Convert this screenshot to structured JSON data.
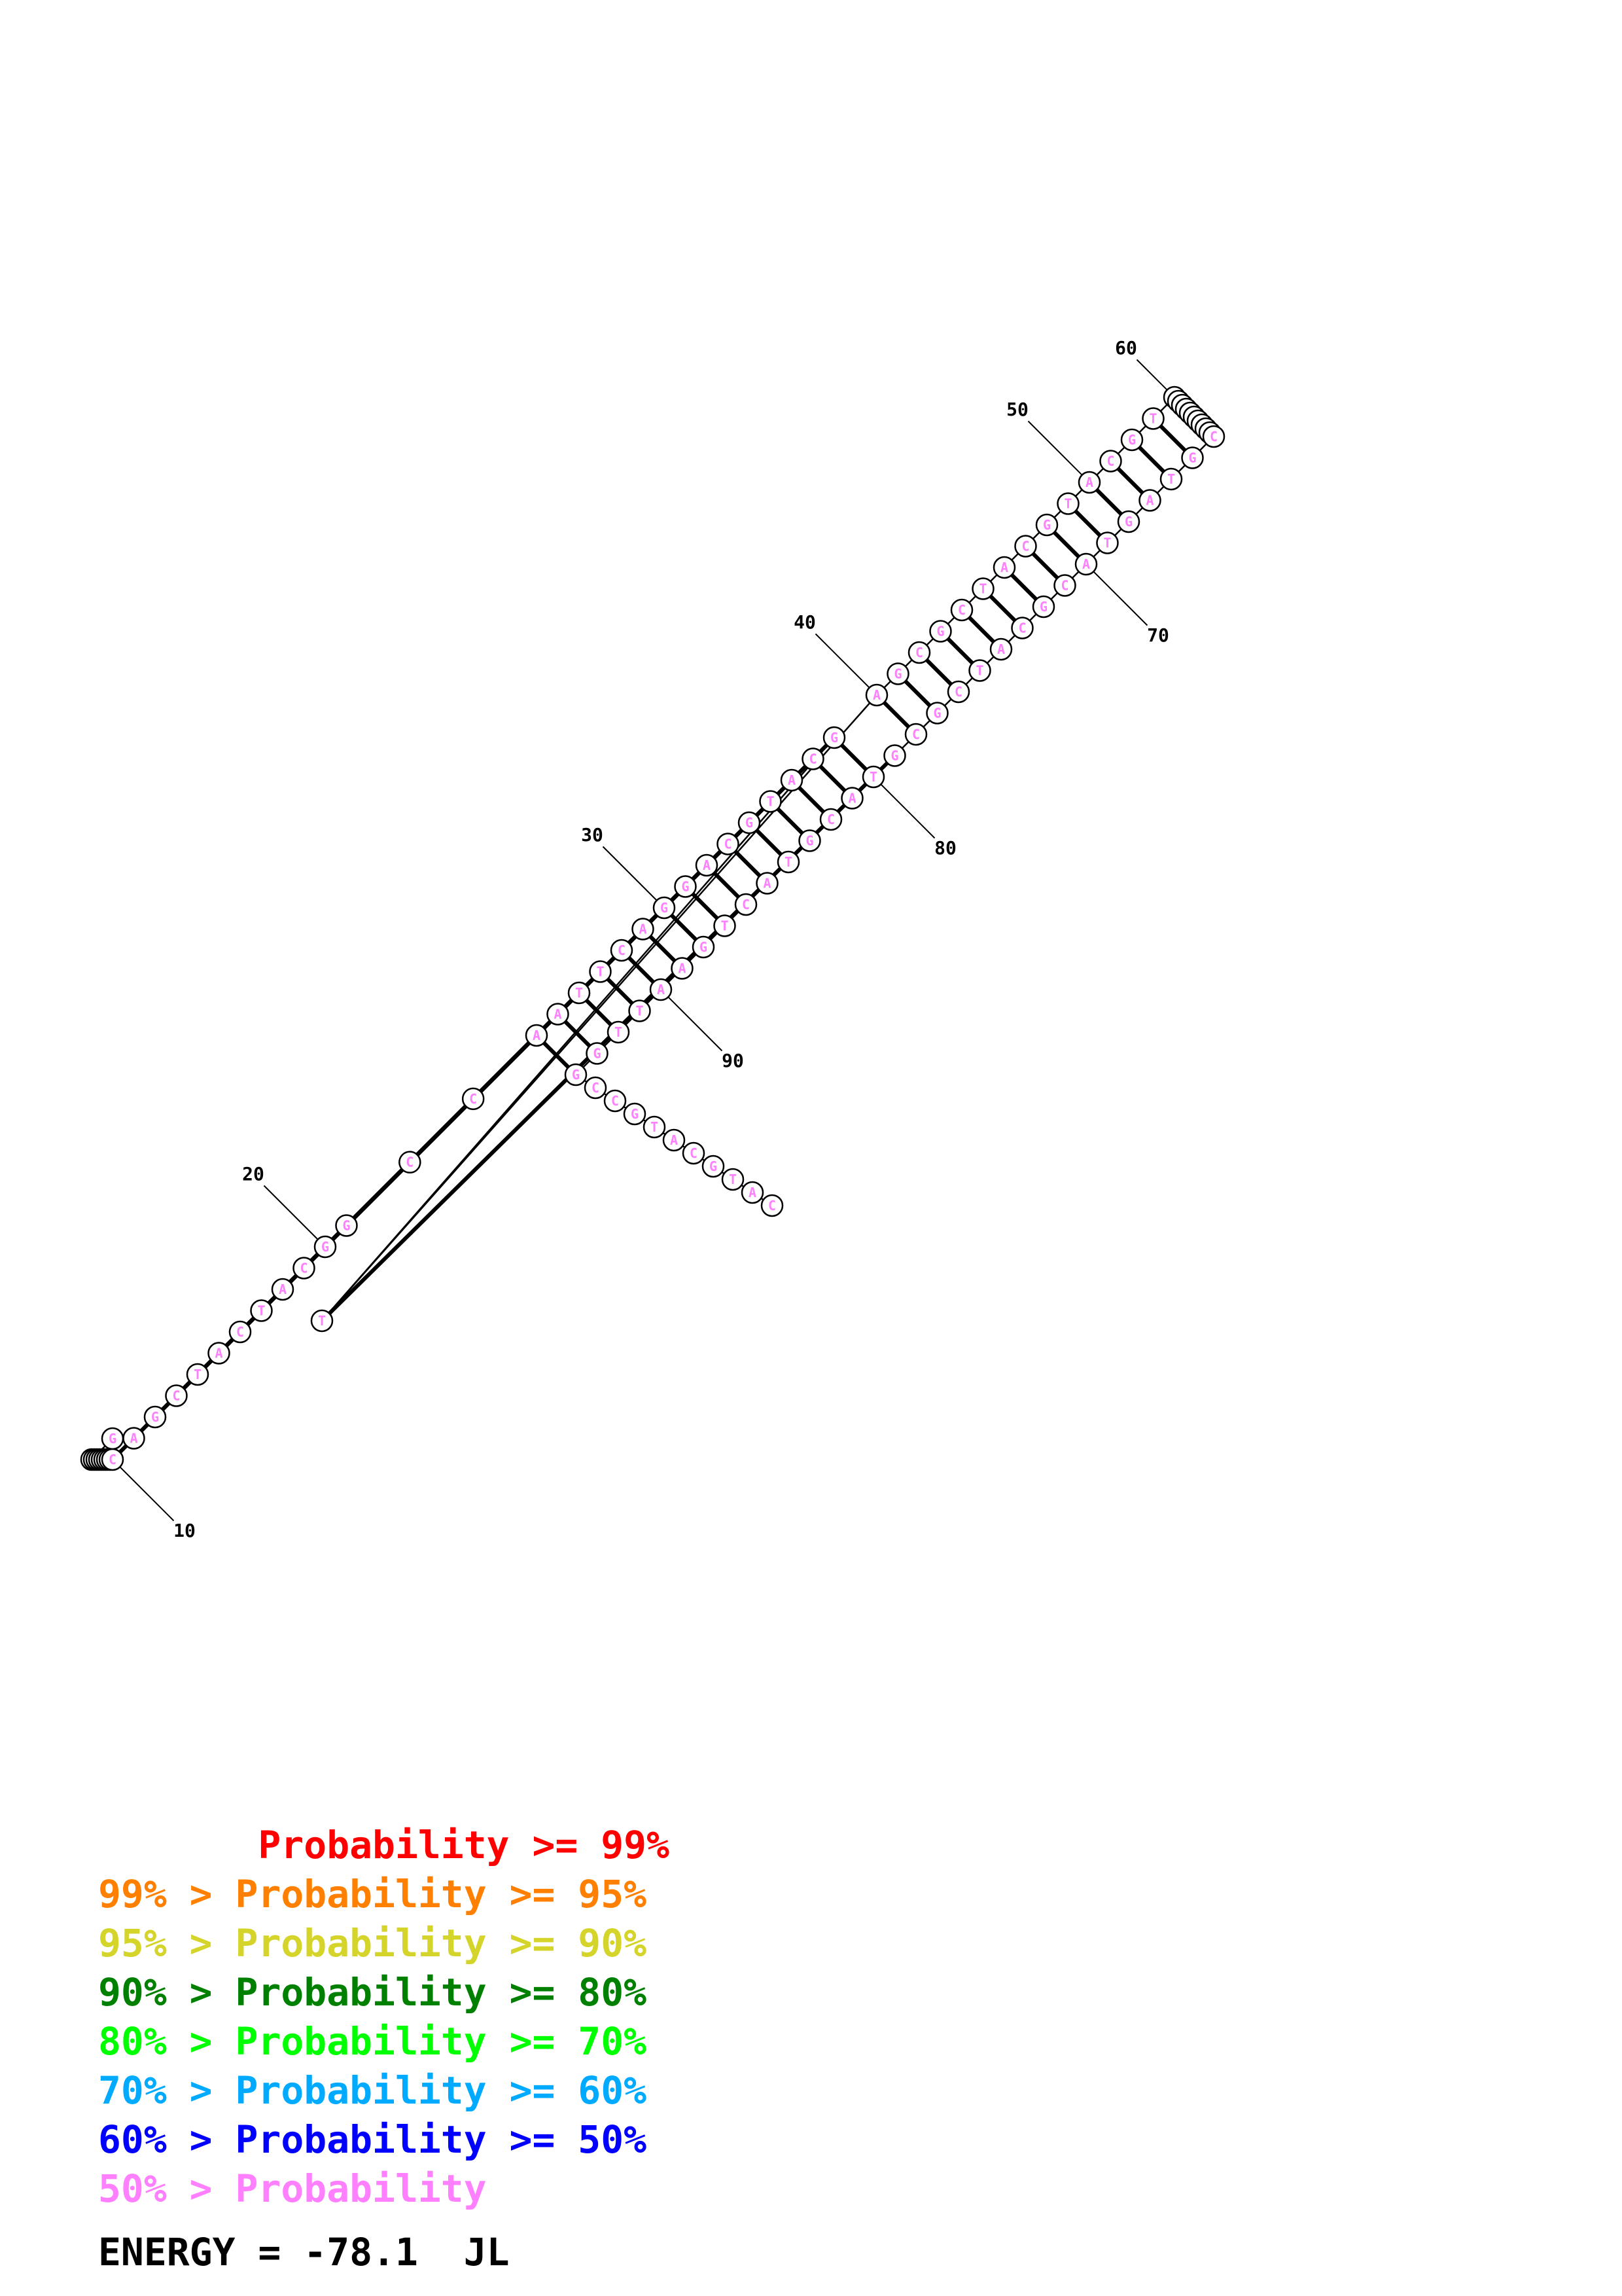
{
  "structure": {
    "sequence": "GCCCCTATGCAGCTACTACGGCCAATTCAGGACGTACGTAGCGCTACGTACGTACGTACGCATCGTAGTACGCATCGCGTACGTACTGAATTGGCCGTACGTAC",
    "nucleotide_color": "#ff80ff",
    "numbering": [
      "10",
      "20",
      "30",
      "40",
      "50",
      "60",
      "70",
      "80",
      "90"
    ]
  },
  "legend": [
    {
      "text": "       Probability >= 99%",
      "color": "#ff0000"
    },
    {
      "text": "99% > Probability >= 95%",
      "color": "#ff8000"
    },
    {
      "text": "95% > Probability >= 90%",
      "color": "#d4d42a"
    },
    {
      "text": "90% > Probability >= 80%",
      "color": "#008000"
    },
    {
      "text": "80% > Probability >= 70%",
      "color": "#00ff00"
    },
    {
      "text": "70% > Probability >= 60%",
      "color": "#00aaff"
    },
    {
      "text": "60% > Probability >= 50%",
      "color": "#0000ff"
    },
    {
      "text": "50% > Probability",
      "color": "#ff80ff"
    }
  ],
  "energy": "ENERGY = -78.1  JL"
}
